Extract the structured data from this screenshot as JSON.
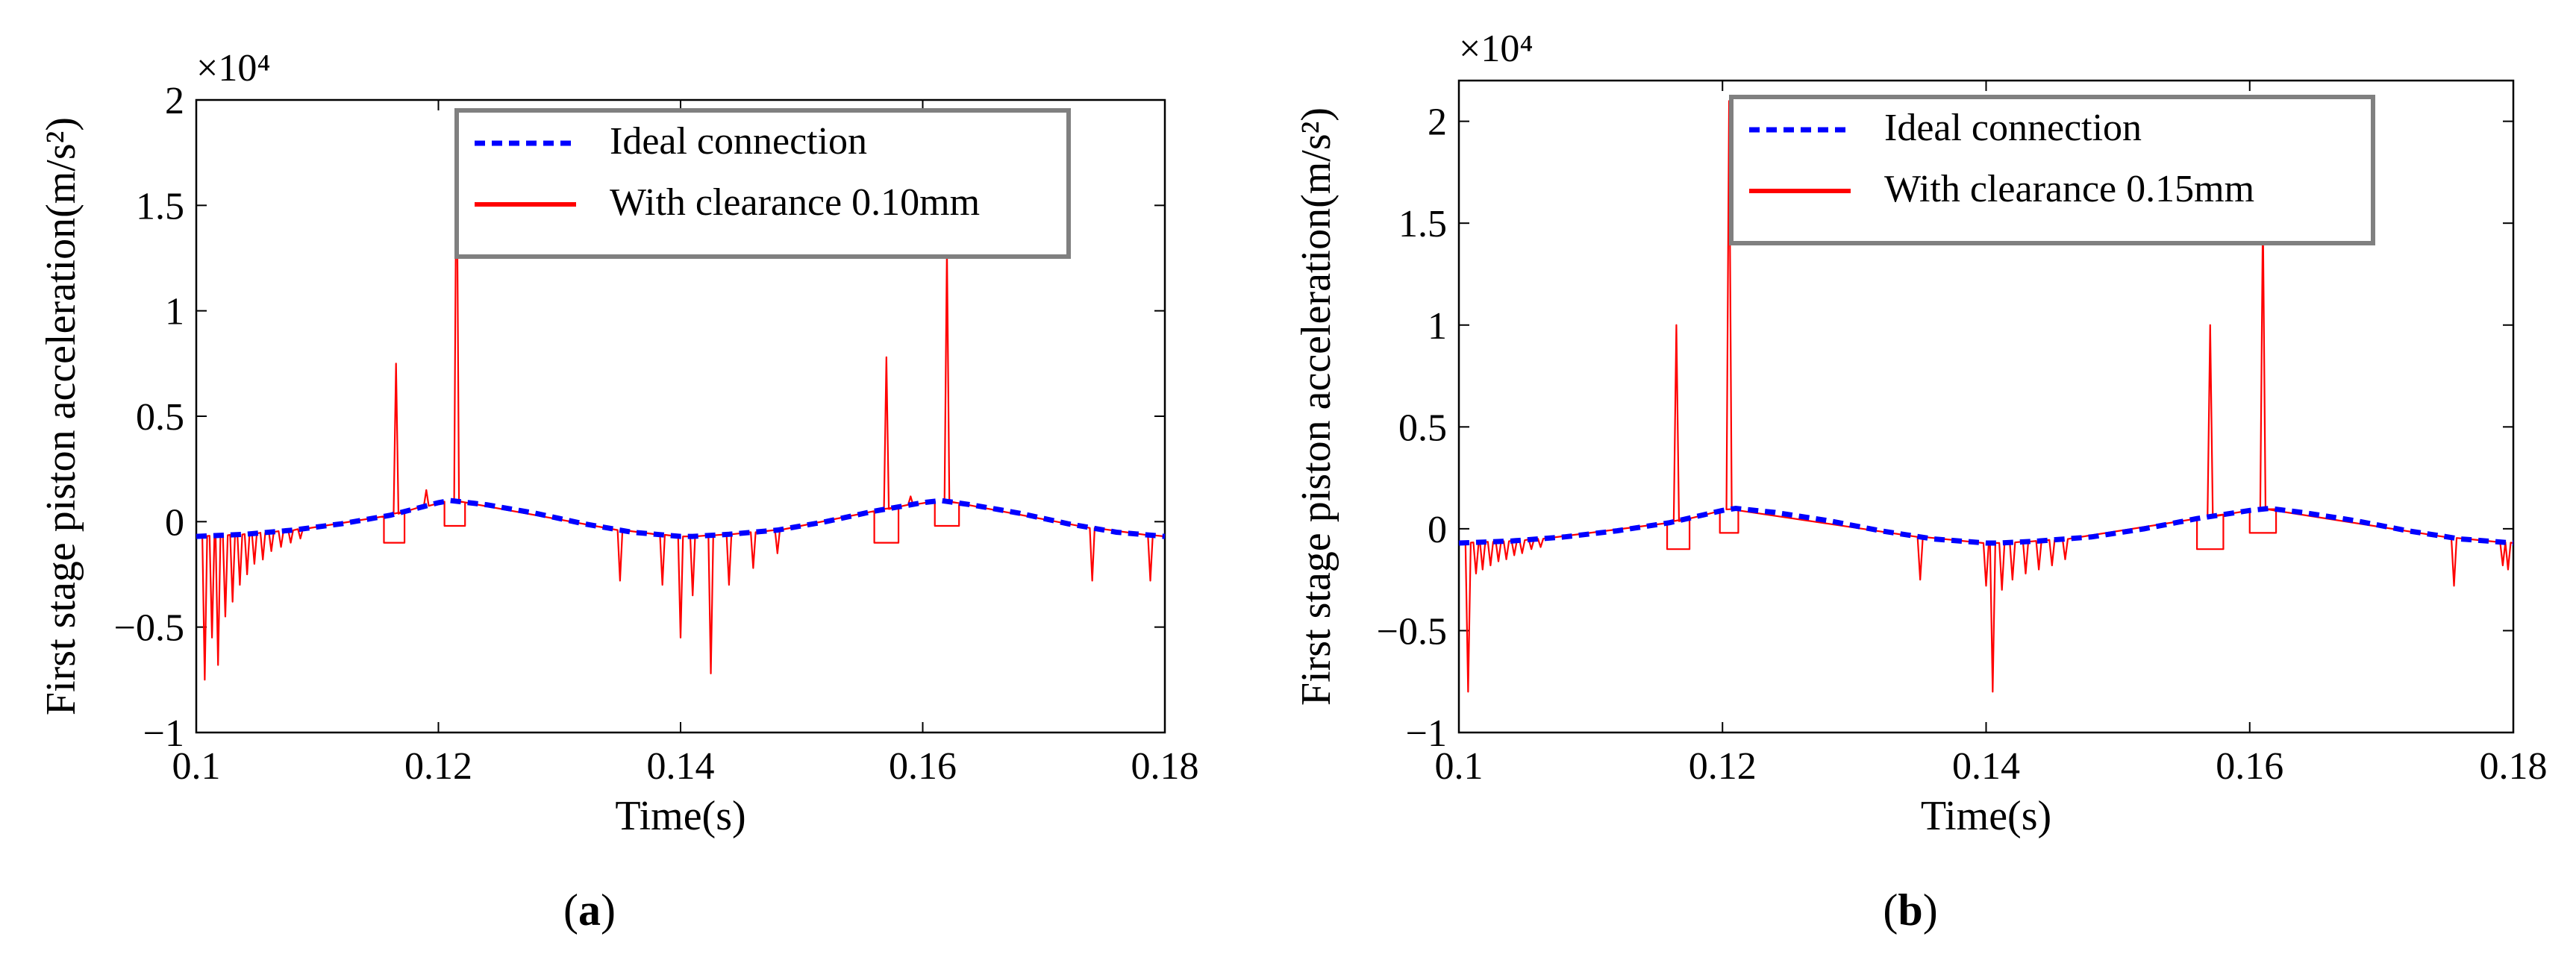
{
  "chart_data": [
    {
      "type": "line",
      "panel_label": "(a)",
      "panel_letter": "a",
      "xlabel": "Time(s)",
      "ylabel": "First stage piston acceleration(m/s²)",
      "y_multiplier": "×10⁴",
      "xlim": [
        0.1,
        0.18
      ],
      "ylim": [
        -1,
        2
      ],
      "xticks": [
        0.1,
        0.12,
        0.14,
        0.16,
        0.18
      ],
      "xtick_labels": [
        "0.1",
        "0.12",
        "0.14",
        "0.16",
        "0.18"
      ],
      "yticks": [
        -1,
        -0.5,
        0,
        0.5,
        1,
        1.5,
        2
      ],
      "ytick_labels": [
        "−1",
        "−0.5",
        "0",
        "0.5",
        "1",
        "1.5",
        "2"
      ],
      "series": [
        {
          "name": "Ideal connection",
          "color": "#0000ff",
          "style": "dashed",
          "x": [
            0.1,
            0.104,
            0.108,
            0.112,
            0.116,
            0.12,
            0.121,
            0.124,
            0.128,
            0.132,
            0.136,
            0.14,
            0.141,
            0.144,
            0.148,
            0.152,
            0.156,
            0.16,
            0.1615,
            0.164,
            0.168,
            0.172,
            0.176,
            0.18
          ],
          "values": [
            -0.07,
            -0.06,
            -0.04,
            -0.01,
            0.03,
            0.09,
            0.1,
            0.08,
            0.04,
            -0.01,
            -0.05,
            -0.07,
            -0.07,
            -0.06,
            -0.04,
            0.0,
            0.05,
            0.09,
            0.1,
            0.08,
            0.04,
            -0.01,
            -0.05,
            -0.07
          ]
        },
        {
          "name": "With clearance 0.10mm",
          "color": "#ff0000",
          "style": "solid",
          "spikes": [
            {
              "x": 0.1007,
              "y": -0.75
            },
            {
              "x": 0.1013,
              "y": -0.55
            },
            {
              "x": 0.1018,
              "y": -0.68
            },
            {
              "x": 0.1024,
              "y": -0.45
            },
            {
              "x": 0.103,
              "y": -0.38
            },
            {
              "x": 0.1036,
              "y": -0.3
            },
            {
              "x": 0.1042,
              "y": -0.25
            },
            {
              "x": 0.1048,
              "y": -0.2
            },
            {
              "x": 0.1055,
              "y": -0.18
            },
            {
              "x": 0.1062,
              "y": -0.14
            },
            {
              "x": 0.107,
              "y": -0.12
            },
            {
              "x": 0.1078,
              "y": -0.1
            },
            {
              "x": 0.1086,
              "y": -0.08
            },
            {
              "x": 0.1165,
              "y": 0.75
            },
            {
              "x": 0.119,
              "y": 0.15
            },
            {
              "x": 0.1215,
              "y": 1.9
            },
            {
              "x": 0.135,
              "y": -0.28
            },
            {
              "x": 0.1385,
              "y": -0.3
            },
            {
              "x": 0.14,
              "y": -0.55
            },
            {
              "x": 0.141,
              "y": -0.35
            },
            {
              "x": 0.1425,
              "y": -0.72
            },
            {
              "x": 0.144,
              "y": -0.3
            },
            {
              "x": 0.146,
              "y": -0.22
            },
            {
              "x": 0.148,
              "y": -0.15
            },
            {
              "x": 0.157,
              "y": 0.78
            },
            {
              "x": 0.159,
              "y": 0.12
            },
            {
              "x": 0.162,
              "y": 1.3
            },
            {
              "x": 0.174,
              "y": -0.28
            },
            {
              "x": 0.1788,
              "y": -0.28
            }
          ],
          "plateaus": [
            {
              "x0": 0.1155,
              "x1": 0.1172,
              "y": -0.1
            },
            {
              "x0": 0.1205,
              "x1": 0.1222,
              "y": -0.02
            },
            {
              "x0": 0.156,
              "x1": 0.158,
              "y": -0.1
            },
            {
              "x0": 0.161,
              "x1": 0.163,
              "y": -0.02
            }
          ]
        }
      ],
      "legend": {
        "position": "top-right",
        "entries": [
          "Ideal connection",
          "With clearance 0.10mm"
        ]
      }
    },
    {
      "type": "line",
      "panel_label": "(b)",
      "panel_letter": "b",
      "xlabel": "Time(s)",
      "ylabel": "First stage piston acceleration(m/s²)",
      "y_multiplier": "×10⁴",
      "xlim": [
        0.1,
        0.18
      ],
      "ylim": [
        -1,
        2.2
      ],
      "xticks": [
        0.1,
        0.12,
        0.14,
        0.16,
        0.18
      ],
      "xtick_labels": [
        "0.1",
        "0.12",
        "0.14",
        "0.16",
        "0.18"
      ],
      "yticks": [
        -1,
        -0.5,
        0,
        0.5,
        1,
        1.5,
        2
      ],
      "ytick_labels": [
        "−1",
        "−0.5",
        "0",
        "0.5",
        "1",
        "1.5",
        "2"
      ],
      "series": [
        {
          "name": "Ideal connection",
          "color": "#0000ff",
          "style": "dashed",
          "x": [
            0.1,
            0.104,
            0.108,
            0.112,
            0.116,
            0.12,
            0.121,
            0.124,
            0.128,
            0.132,
            0.136,
            0.14,
            0.141,
            0.144,
            0.148,
            0.152,
            0.156,
            0.16,
            0.1615,
            0.164,
            0.168,
            0.172,
            0.176,
            0.18
          ],
          "values": [
            -0.07,
            -0.06,
            -0.04,
            -0.01,
            0.03,
            0.09,
            0.1,
            0.08,
            0.04,
            -0.01,
            -0.05,
            -0.07,
            -0.07,
            -0.06,
            -0.04,
            0.0,
            0.05,
            0.09,
            0.1,
            0.08,
            0.04,
            -0.01,
            -0.05,
            -0.07
          ]
        },
        {
          "name": "With clearance 0.15mm",
          "color": "#ff0000",
          "style": "solid",
          "spikes": [
            {
              "x": 0.1007,
              "y": -0.8
            },
            {
              "x": 0.1013,
              "y": -0.22
            },
            {
              "x": 0.1018,
              "y": -0.2
            },
            {
              "x": 0.1024,
              "y": -0.18
            },
            {
              "x": 0.103,
              "y": -0.16
            },
            {
              "x": 0.1036,
              "y": -0.15
            },
            {
              "x": 0.1042,
              "y": -0.13
            },
            {
              "x": 0.1048,
              "y": -0.12
            },
            {
              "x": 0.1055,
              "y": -0.1
            },
            {
              "x": 0.1062,
              "y": -0.09
            },
            {
              "x": 0.1165,
              "y": 1.0
            },
            {
              "x": 0.1205,
              "y": 2.1
            },
            {
              "x": 0.135,
              "y": -0.25
            },
            {
              "x": 0.14,
              "y": -0.28
            },
            {
              "x": 0.1405,
              "y": -0.8
            },
            {
              "x": 0.1412,
              "y": -0.3
            },
            {
              "x": 0.142,
              "y": -0.25
            },
            {
              "x": 0.143,
              "y": -0.22
            },
            {
              "x": 0.144,
              "y": -0.2
            },
            {
              "x": 0.145,
              "y": -0.18
            },
            {
              "x": 0.146,
              "y": -0.15
            },
            {
              "x": 0.157,
              "y": 1.0
            },
            {
              "x": 0.161,
              "y": 1.55
            },
            {
              "x": 0.1755,
              "y": -0.28
            },
            {
              "x": 0.1792,
              "y": -0.18
            },
            {
              "x": 0.1796,
              "y": -0.2
            }
          ],
          "plateaus": [
            {
              "x0": 0.1158,
              "x1": 0.1175,
              "y": -0.1
            },
            {
              "x0": 0.1198,
              "x1": 0.1212,
              "y": -0.02
            },
            {
              "x0": 0.156,
              "x1": 0.158,
              "y": -0.1
            },
            {
              "x0": 0.16,
              "x1": 0.162,
              "y": -0.02
            }
          ]
        }
      ],
      "legend": {
        "position": "top-right",
        "entries": [
          "Ideal connection",
          "With clearance 0.15mm"
        ]
      }
    }
  ]
}
